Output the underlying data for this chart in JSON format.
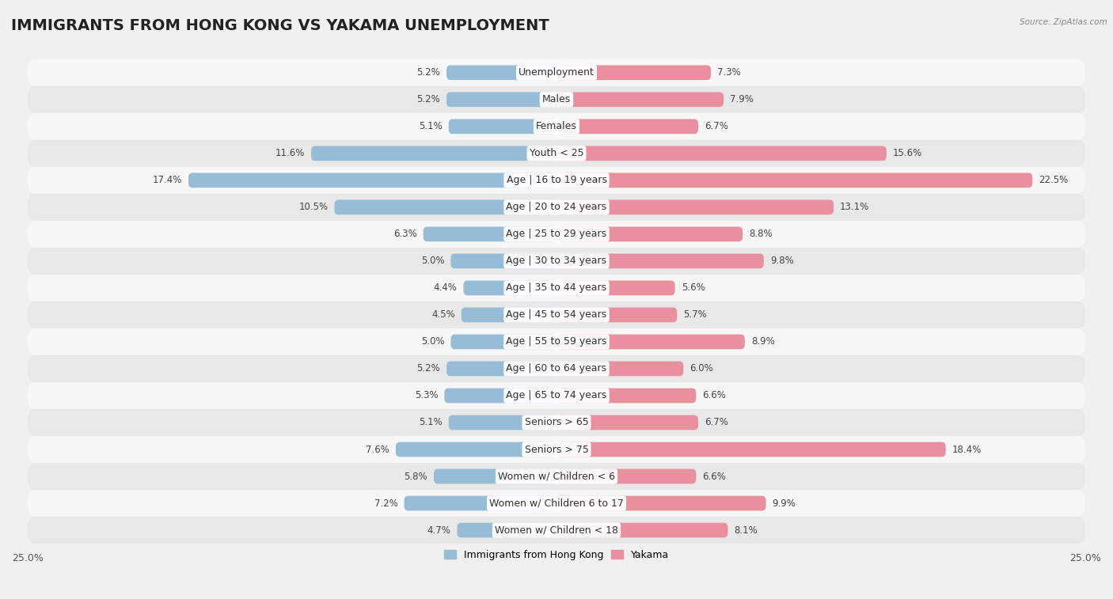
{
  "title": "IMMIGRANTS FROM HONG KONG VS YAKAMA UNEMPLOYMENT",
  "source": "Source: ZipAtlas.com",
  "categories": [
    "Unemployment",
    "Males",
    "Females",
    "Youth < 25",
    "Age | 16 to 19 years",
    "Age | 20 to 24 years",
    "Age | 25 to 29 years",
    "Age | 30 to 34 years",
    "Age | 35 to 44 years",
    "Age | 45 to 54 years",
    "Age | 55 to 59 years",
    "Age | 60 to 64 years",
    "Age | 65 to 74 years",
    "Seniors > 65",
    "Seniors > 75",
    "Women w/ Children < 6",
    "Women w/ Children 6 to 17",
    "Women w/ Children < 18"
  ],
  "left_values": [
    5.2,
    5.2,
    5.1,
    11.6,
    17.4,
    10.5,
    6.3,
    5.0,
    4.4,
    4.5,
    5.0,
    5.2,
    5.3,
    5.1,
    7.6,
    5.8,
    7.2,
    4.7
  ],
  "right_values": [
    7.3,
    7.9,
    6.7,
    15.6,
    22.5,
    13.1,
    8.8,
    9.8,
    5.6,
    5.7,
    8.9,
    6.0,
    6.6,
    6.7,
    18.4,
    6.6,
    9.9,
    8.1
  ],
  "left_color": "#97bcd6",
  "right_color": "#e8909e",
  "background_color": "#f0f0f0",
  "row_color_light": "#f7f7f7",
  "row_color_dark": "#e8e8e8",
  "axis_max": 25.0,
  "legend_left_label": "Immigrants from Hong Kong",
  "legend_right_label": "Yakama",
  "title_fontsize": 14,
  "label_fontsize": 9,
  "value_fontsize": 8.5
}
